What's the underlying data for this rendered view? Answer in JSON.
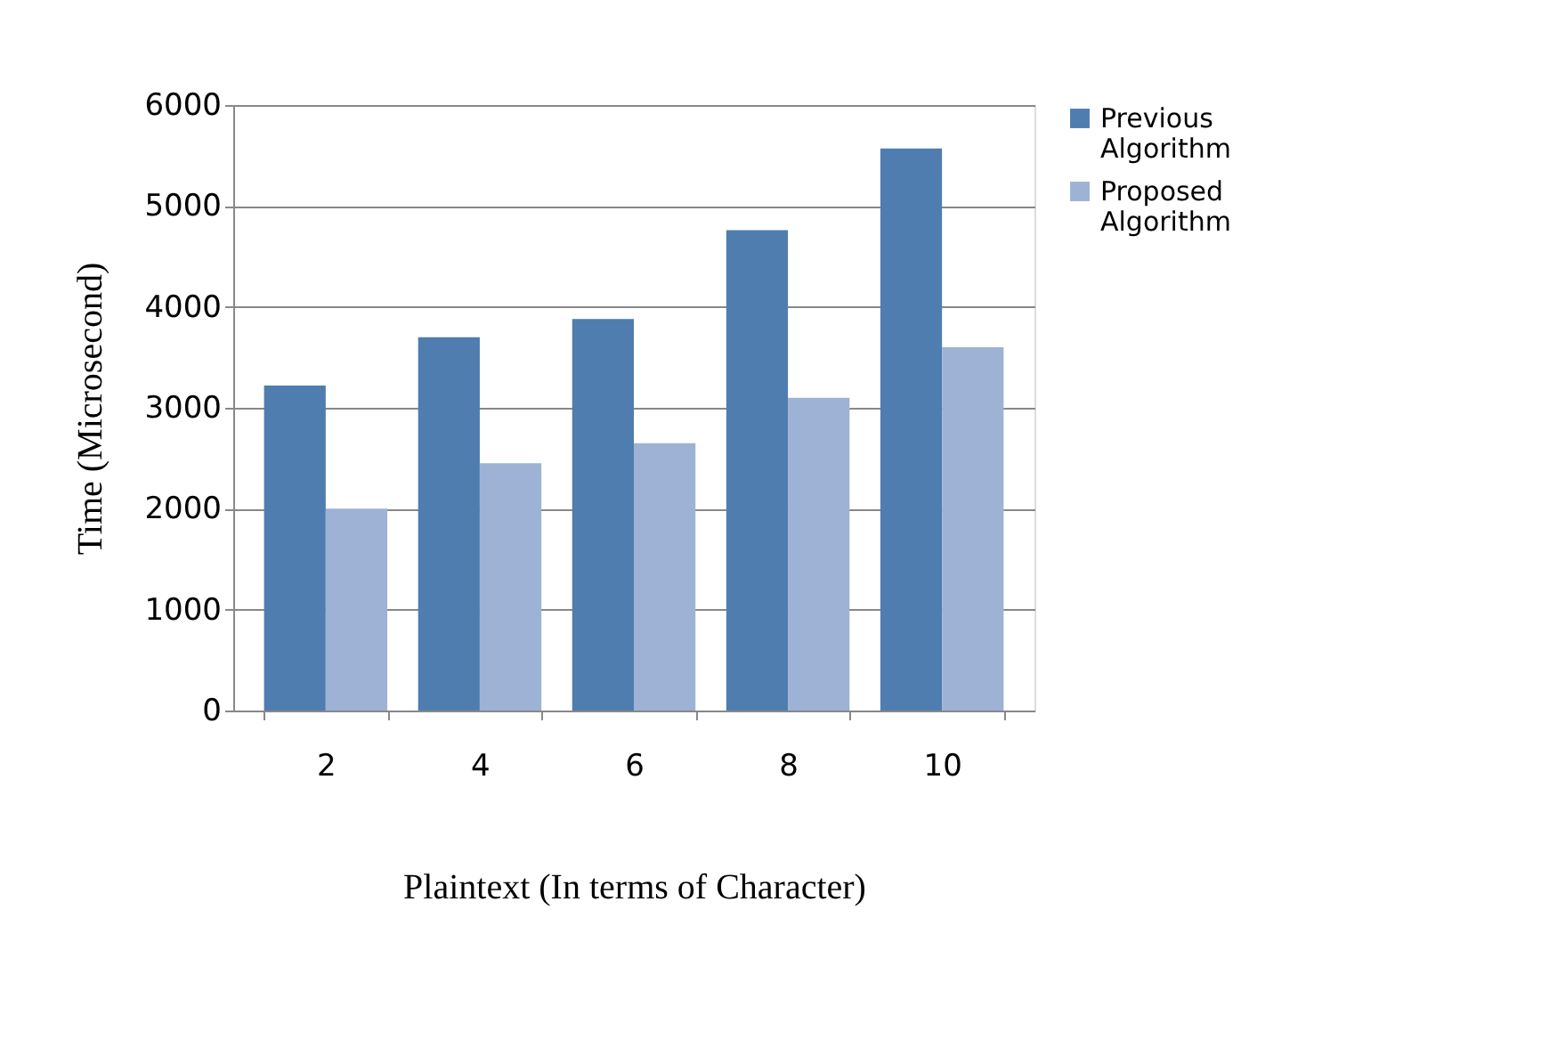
{
  "chart_data": {
    "type": "bar",
    "xlabel": "Plaintext (In terms of Character)",
    "ylabel": "Time (Microsecond)",
    "categories": [
      "2",
      "4",
      "6",
      "8",
      "10"
    ],
    "series": [
      {
        "name": "Previous Algorithm",
        "color": "#4f7db0",
        "values": [
          3220,
          3700,
          3880,
          4760,
          5570
        ]
      },
      {
        "name": "Proposed Algorithm",
        "color": "#9eb2d6",
        "values": [
          2000,
          2450,
          2650,
          3100,
          3600
        ]
      }
    ],
    "ylim": [
      0,
      6000
    ],
    "yticks": [
      0,
      1000,
      2000,
      3000,
      4000,
      5000,
      6000
    ],
    "grid": "y",
    "legend": "right"
  }
}
